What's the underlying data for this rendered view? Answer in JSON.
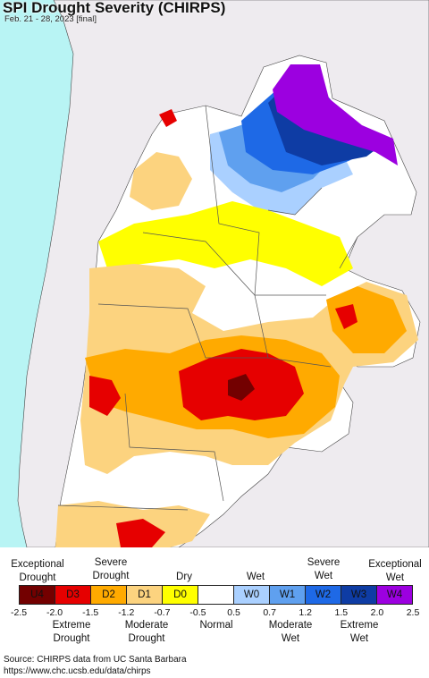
{
  "header": {
    "title": "SPI Drought Severity (CHIRPS)",
    "subtitle": "Feb. 21 - 28, 2023 [final]"
  },
  "colors": {
    "ocean": "#b8f4f4",
    "land_outside": "#eeebef",
    "U4": "#730000",
    "D3": "#e60000",
    "D2": "#ffaa00",
    "D1": "#fcd37f",
    "D0": "#ffff00",
    "normal": "#ffffff",
    "W0": "#aad0ff",
    "W1": "#5fa0ef",
    "W2": "#1e69e6",
    "W3": "#0e3ca4",
    "W4": "#9c00e0"
  },
  "legend": {
    "top_labels": {
      "exceptional_drought": "Exceptional\nDrought",
      "severe_drought": "Severe\nDrought",
      "dry": "Dry",
      "wet": "Wet",
      "severe_wet": "Severe\nWet",
      "exceptional_wet": "Exceptional\nWet"
    },
    "categories": [
      {
        "code": "U4",
        "color": "#730000"
      },
      {
        "code": "D3",
        "color": "#e60000"
      },
      {
        "code": "D2",
        "color": "#ffaa00"
      },
      {
        "code": "D1",
        "color": "#fcd37f"
      },
      {
        "code": "D0",
        "color": "#ffff00"
      },
      {
        "code": "",
        "color": "#ffffff"
      },
      {
        "code": "W0",
        "color": "#aad0ff"
      },
      {
        "code": "W1",
        "color": "#5fa0ef"
      },
      {
        "code": "W2",
        "color": "#1e69e6"
      },
      {
        "code": "W3",
        "color": "#0e3ca4"
      },
      {
        "code": "W4",
        "color": "#9c00e0"
      }
    ],
    "ticks": [
      "-2.5",
      "-2.0",
      "-1.5",
      "-1.2",
      "-0.7",
      "-0.5",
      "0.5",
      "0.7",
      "1.2",
      "1.5",
      "2.0",
      "2.5"
    ],
    "bottom_labels": {
      "extreme_drought": "Extreme\nDrought",
      "moderate_drought": "Moderate\nDrought",
      "normal": "Normal",
      "moderate_wet": "Moderate\nWet",
      "extreme_wet": "Extreme\nWet"
    }
  },
  "source": {
    "line1": "Source: CHIRPS data from UC Santa Barbara",
    "line2": "https://www.chc.ucsb.edu/data/chirps"
  }
}
